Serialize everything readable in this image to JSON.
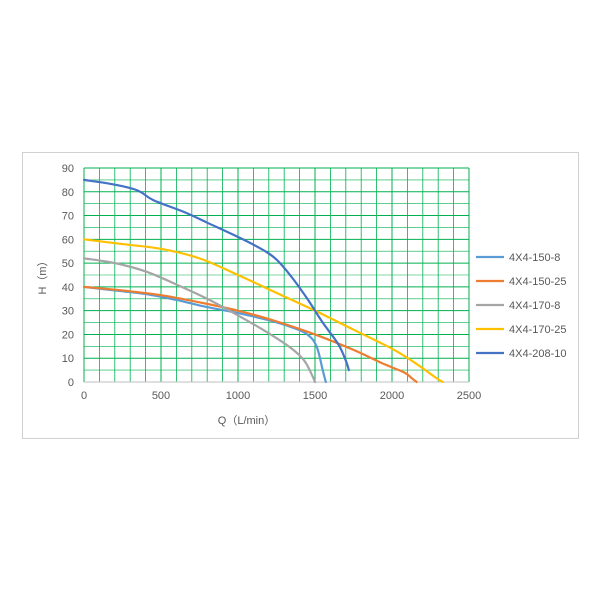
{
  "chart_data": {
    "type": "line",
    "title": "",
    "xlabel": "Q（L/min）",
    "ylabel": "H（m）",
    "xlim": [
      0,
      2500
    ],
    "ylim": [
      0,
      90
    ],
    "x_ticks": [
      "0",
      "500",
      "1000",
      "1500",
      "2000",
      "2500"
    ],
    "y_ticks": [
      "0",
      "10",
      "20",
      "30",
      "40",
      "50",
      "60",
      "70",
      "80",
      "90"
    ],
    "grid": true,
    "grid_color": "#00b050",
    "legend_position": "right",
    "series": [
      {
        "name": "4X4-150-8",
        "color": "#5b9bd5",
        "points": [
          [
            0,
            40
          ],
          [
            200,
            38.5
          ],
          [
            400,
            37
          ],
          [
            600,
            34.5
          ],
          [
            800,
            31.5
          ],
          [
            1000,
            29
          ],
          [
            1200,
            26
          ],
          [
            1350,
            23
          ],
          [
            1450,
            20
          ],
          [
            1510,
            15
          ],
          [
            1550,
            5
          ],
          [
            1570,
            0
          ]
        ]
      },
      {
        "name": "4X4-150-25",
        "color": "#ed7d31",
        "points": [
          [
            0,
            40
          ],
          [
            250,
            38.5
          ],
          [
            500,
            36.5
          ],
          [
            750,
            33.5
          ],
          [
            1000,
            30
          ],
          [
            1250,
            25.5
          ],
          [
            1500,
            20
          ],
          [
            1750,
            13.5
          ],
          [
            1950,
            7.5
          ],
          [
            2080,
            4
          ],
          [
            2130,
            1.5
          ],
          [
            2160,
            0
          ]
        ]
      },
      {
        "name": "4X4-170-8",
        "color": "#a5a5a5",
        "points": [
          [
            0,
            52
          ],
          [
            200,
            50
          ],
          [
            400,
            46.5
          ],
          [
            600,
            41
          ],
          [
            800,
            35
          ],
          [
            1000,
            28
          ],
          [
            1200,
            20.5
          ],
          [
            1350,
            14
          ],
          [
            1430,
            9
          ],
          [
            1480,
            3
          ],
          [
            1500,
            0
          ]
        ]
      },
      {
        "name": "4X4-170-25",
        "color": "#ffc000",
        "points": [
          [
            0,
            60
          ],
          [
            250,
            58
          ],
          [
            500,
            56
          ],
          [
            750,
            52
          ],
          [
            1000,
            45
          ],
          [
            1250,
            37.5
          ],
          [
            1500,
            30
          ],
          [
            1750,
            22
          ],
          [
            2000,
            14
          ],
          [
            2150,
            8
          ],
          [
            2280,
            2
          ],
          [
            2330,
            0
          ]
        ]
      },
      {
        "name": "4X4-208-10",
        "color": "#4472c4",
        "points": [
          [
            0,
            85
          ],
          [
            200,
            83
          ],
          [
            350,
            80.5
          ],
          [
            450,
            76.5
          ],
          [
            650,
            71.5
          ],
          [
            800,
            67
          ],
          [
            1000,
            61
          ],
          [
            1150,
            56
          ],
          [
            1250,
            51.5
          ],
          [
            1350,
            44
          ],
          [
            1450,
            35
          ],
          [
            1550,
            25
          ],
          [
            1650,
            16
          ],
          [
            1700,
            9
          ],
          [
            1720,
            5
          ]
        ]
      }
    ]
  }
}
